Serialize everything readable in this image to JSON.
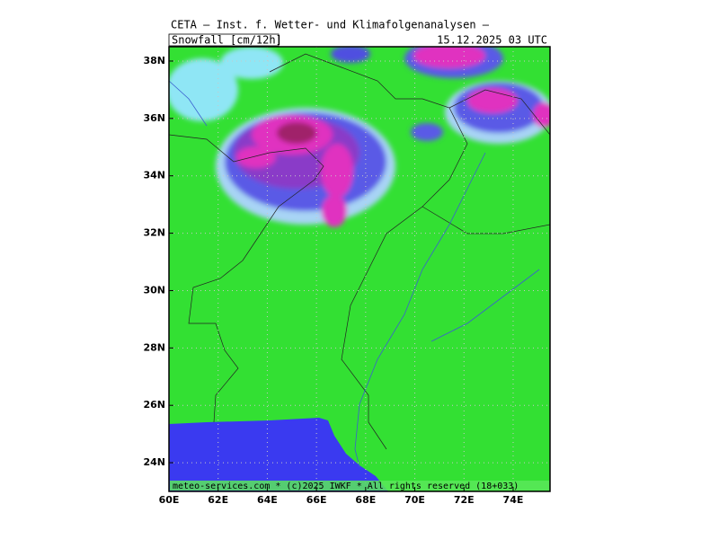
{
  "header": {
    "title": "CETA — Inst. f. Wetter- und Klimafolgenanalysen —",
    "product": "Snowfall [cm/12h]",
    "valid_time": "15.12.2025 03 UTC"
  },
  "map": {
    "lonlim": [
      60,
      75.5
    ],
    "latlim": [
      23,
      38.5
    ],
    "lon_ticks": [
      {
        "value": 60,
        "label": "60E"
      },
      {
        "value": 62,
        "label": "62E"
      },
      {
        "value": 64,
        "label": "64E"
      },
      {
        "value": 66,
        "label": "66E"
      },
      {
        "value": 68,
        "label": "68E"
      },
      {
        "value": 70,
        "label": "70E"
      },
      {
        "value": 72,
        "label": "72E"
      },
      {
        "value": 74,
        "label": "74E"
      }
    ],
    "lat_ticks": [
      {
        "value": 24,
        "label": "24N"
      },
      {
        "value": 26,
        "label": "26N"
      },
      {
        "value": 28,
        "label": "28N"
      },
      {
        "value": 30,
        "label": "30N"
      },
      {
        "value": 32,
        "label": "32N"
      },
      {
        "value": 34,
        "label": "34N"
      },
      {
        "value": 36,
        "label": "36N"
      },
      {
        "value": 38,
        "label": "38N"
      }
    ]
  },
  "footer": "meteo-services.com * (c)2025 IWKF * All rights reserved (18+033)"
}
